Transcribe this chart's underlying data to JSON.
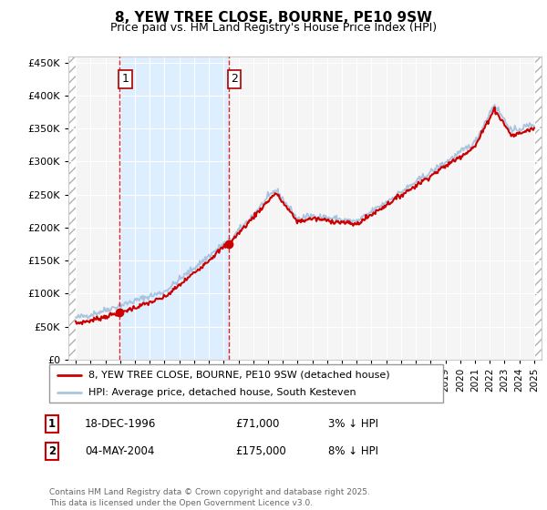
{
  "title": "8, YEW TREE CLOSE, BOURNE, PE10 9SW",
  "subtitle": "Price paid vs. HM Land Registry's House Price Index (HPI)",
  "legend_line1": "8, YEW TREE CLOSE, BOURNE, PE10 9SW (detached house)",
  "legend_line2": "HPI: Average price, detached house, South Kesteven",
  "table_rows": [
    {
      "num": "1",
      "date": "18-DEC-1996",
      "price": "£71,000",
      "hpi": "3% ↓ HPI"
    },
    {
      "num": "2",
      "date": "04-MAY-2004",
      "price": "£175,000",
      "hpi": "8% ↓ HPI"
    }
  ],
  "footer": "Contains HM Land Registry data © Crown copyright and database right 2025.\nThis data is licensed under the Open Government Licence v3.0.",
  "sale1_year": 1996.96,
  "sale1_price": 71000,
  "sale2_year": 2004.34,
  "sale2_price": 175000,
  "vline1_year": 1996.96,
  "vline2_year": 2004.34,
  "hpi_color": "#aac4e0",
  "price_color": "#cc0000",
  "vline_color": "#dd0000",
  "shade_color": "#ddeeff",
  "ylim": [
    0,
    460000
  ],
  "yticks": [
    0,
    50000,
    100000,
    150000,
    200000,
    250000,
    300000,
    350000,
    400000,
    450000
  ],
  "xlim_start": 1993.5,
  "xlim_end": 2025.5,
  "background_color": "#ffffff",
  "plot_bg_color": "#f5f5f5"
}
